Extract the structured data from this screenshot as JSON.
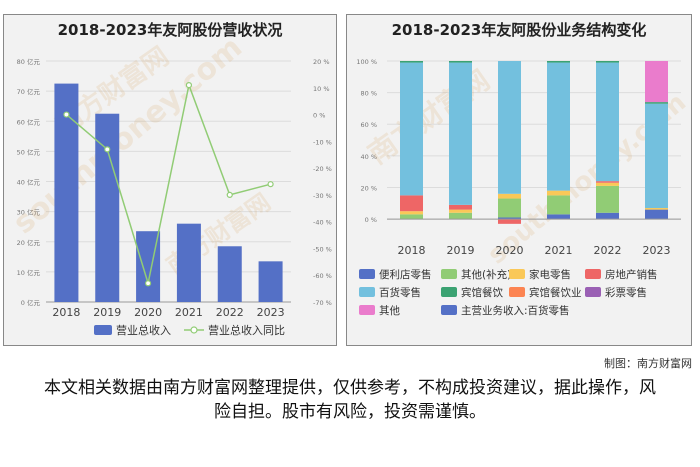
{
  "credit": "制图：南方财富网",
  "disclaimer": "本文相关数据由南方财富网整理提供，仅供参考，不构成投资建议，据此操作，风险自担。股市有风险，投资需谨慎。",
  "watermark": {
    "brand": "南方财富网",
    "url": "southmoney.com"
  },
  "chart_data": [
    {
      "type": "bar",
      "title": "2018-2023年友阿股份营收状况",
      "categories": [
        "2018",
        "2019",
        "2020",
        "2021",
        "2022",
        "2023"
      ],
      "y_ticks": [
        "0 亿元",
        "10 亿元",
        "20 亿元",
        "30 亿元",
        "40 亿元",
        "50 亿元",
        "60 亿元",
        "70 亿元",
        "80 亿元"
      ],
      "y2_ticks": [
        "20 %",
        "10 %",
        "0 %",
        "-10 %",
        "-20 %",
        "-30 %",
        "-40 %",
        "-50 %",
        "-60 %",
        "-70 %"
      ],
      "ylim": [
        0,
        80
      ],
      "y2lim": [
        -70,
        20
      ],
      "grid": true,
      "legend_position": "bottom",
      "series": [
        {
          "name": "营业总收入",
          "kind": "bar",
          "color": "#5470c6",
          "values": [
            72.5,
            62.5,
            23.5,
            26,
            18.5,
            13.5
          ]
        },
        {
          "name": "营业总收入同比",
          "kind": "line",
          "axis": "right",
          "color": "#91cc75",
          "values": [
            0,
            -13,
            -63,
            11,
            -30,
            -26
          ]
        }
      ]
    },
    {
      "type": "bar",
      "stacked": true,
      "title": "2018-2023年友阿股份业务结构变化",
      "categories": [
        "2018",
        "2019",
        "2020",
        "2021",
        "2022",
        "2023"
      ],
      "y_ticks": [
        "0 %",
        "20 %",
        "40 %",
        "60 %",
        "80 %",
        "100 %"
      ],
      "ylim": [
        -5,
        100
      ],
      "grid": true,
      "legend_position": "bottom",
      "series": [
        {
          "name": "便利店零售",
          "color": "#5470c6",
          "values": [
            0,
            0,
            1,
            3,
            4,
            6
          ]
        },
        {
          "name": "其他(补充)",
          "color": "#91cc75",
          "values": [
            3,
            4,
            12,
            12,
            17,
            0
          ]
        },
        {
          "name": "家电零售",
          "color": "#fac858",
          "values": [
            2,
            2,
            3,
            3,
            2,
            1
          ]
        },
        {
          "name": "房地产销售",
          "color": "#ee6666",
          "values": [
            10,
            3,
            -3,
            0,
            1,
            0
          ]
        },
        {
          "name": "百货零售",
          "color": "#73c0de",
          "values": [
            84,
            90,
            84,
            81,
            75,
            66
          ]
        },
        {
          "name": "宾馆餐饮",
          "color": "#3ba272",
          "values": [
            1,
            1,
            0,
            1,
            1,
            1
          ]
        },
        {
          "name": "宾馆餐饮业",
          "color": "#fc8452",
          "values": [
            0,
            0,
            0,
            0,
            0,
            0
          ]
        },
        {
          "name": "彩票零售",
          "color": "#9a60b4",
          "values": [
            0,
            0,
            0,
            0,
            0,
            0
          ]
        },
        {
          "name": "其他",
          "color": "#ea7ccc",
          "values": [
            0,
            0,
            0,
            0,
            0,
            26
          ]
        },
        {
          "name": "主营业务收入:百货零售",
          "color": "#5470c6",
          "values": [
            0,
            0,
            0,
            0,
            0,
            0
          ]
        }
      ]
    }
  ]
}
